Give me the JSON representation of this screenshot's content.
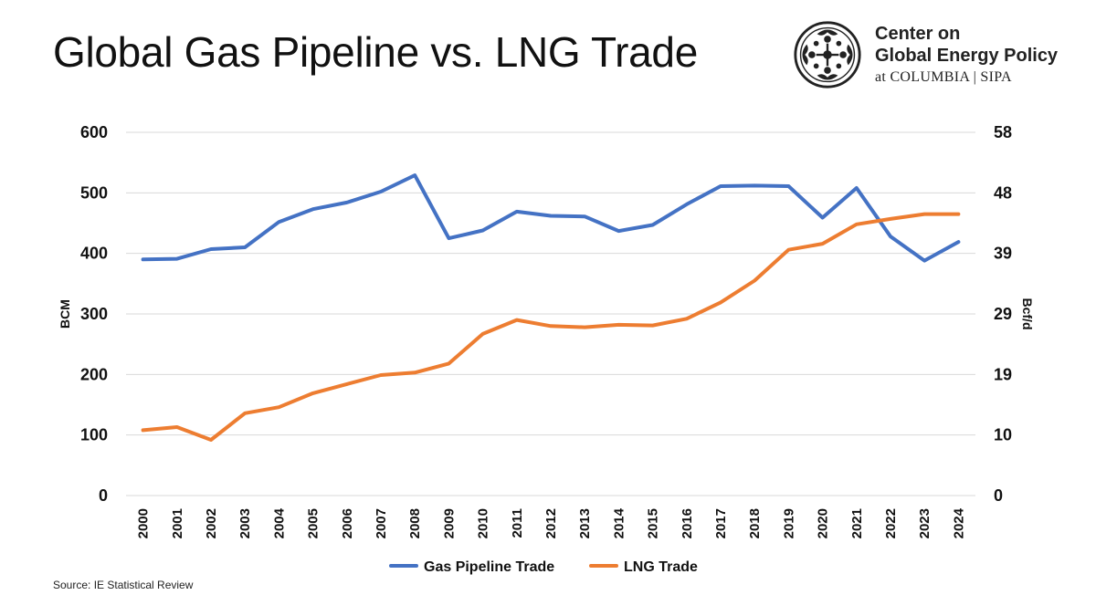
{
  "header": {
    "title": "Global Gas Pipeline vs. LNG Trade"
  },
  "brand": {
    "line1": "Center on",
    "line2": "Global Energy Policy",
    "line3": "at COLUMBIA | SIPA",
    "logo_icon": "columbia-crown-seal-icon"
  },
  "source": "Source: IE Statistical Review",
  "colors": {
    "pipeline": "#4472C4",
    "lng": "#ED7D31",
    "axis_title": "#C00000",
    "grid": "#D9D9D9"
  },
  "chart_data": {
    "type": "line",
    "title": "Global Gas Pipeline vs. LNG Trade",
    "x": [
      "2000",
      "2001",
      "2002",
      "2003",
      "2004",
      "2005",
      "2006",
      "2007",
      "2008",
      "2009",
      "2010",
      "2011",
      "2012",
      "2013",
      "2014",
      "2015",
      "2016",
      "2017",
      "2018",
      "2019",
      "2020",
      "2021",
      "2022",
      "2023",
      "2024"
    ],
    "series": [
      {
        "name": "Gas Pipeline Trade",
        "values": [
          390,
          391,
          407,
          410,
          452,
          473,
          484,
          502,
          529,
          425,
          438,
          469,
          462,
          461,
          437,
          447,
          481,
          511,
          512,
          511,
          459,
          508,
          428,
          388,
          419
        ]
      },
      {
        "name": "LNG Trade",
        "values": [
          108,
          113,
          92,
          136,
          146,
          169,
          184,
          199,
          203,
          218,
          267,
          290,
          280,
          278,
          282,
          281,
          292,
          319,
          355,
          406,
          416,
          448,
          457,
          465,
          465
        ]
      }
    ],
    "ylabel": "BCM",
    "ylabel_right": "Bcf/d",
    "ylim": [
      0,
      600
    ],
    "yticks": [
      "0",
      "100",
      "200",
      "300",
      "400",
      "500",
      "600"
    ],
    "yticks_right": [
      "0",
      "10",
      "19",
      "29",
      "39",
      "48",
      "58"
    ],
    "grid": true,
    "legend_position": "bottom"
  }
}
